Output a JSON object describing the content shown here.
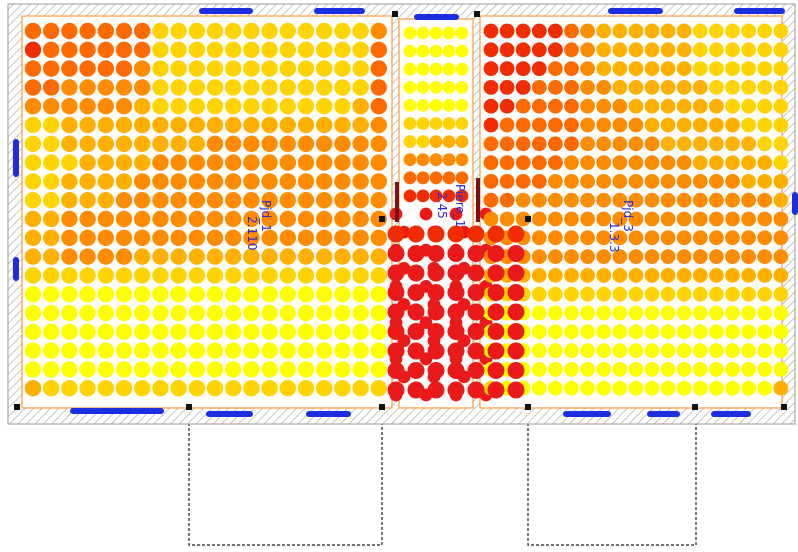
{
  "plan": {
    "colors": {
      "heat_scale": [
        "#ffff00",
        "#ffd400",
        "#ffb000",
        "#ff8c00",
        "#ff6a00",
        "#f02c00",
        "#ea1a1a"
      ],
      "wall_hatch": "#b8b8b8",
      "room_outline": "#ff9a3c",
      "window": "#1c2ee0",
      "door_frame": "#7a1414",
      "label": "#2b2bd6",
      "node": "#111111",
      "dashed_outline": "#222222"
    },
    "rooms": [
      {
        "id": "left-room",
        "label_lines": [
          "Pjd_1",
          "2.110"
        ],
        "heat_grid": [
          [
            4,
            4,
            4,
            4,
            4,
            4,
            4,
            1,
            1,
            1,
            1,
            1,
            1,
            1,
            1,
            1,
            1,
            1,
            1,
            3
          ],
          [
            5,
            4,
            4,
            4,
            4,
            4,
            4,
            1,
            1,
            1,
            1,
            1,
            1,
            1,
            1,
            1,
            1,
            1,
            1,
            4
          ],
          [
            4,
            4,
            4,
            4,
            4,
            4,
            3,
            1,
            1,
            1,
            1,
            1,
            1,
            1,
            1,
            1,
            1,
            1,
            1,
            4
          ],
          [
            4,
            4,
            3,
            3,
            3,
            3,
            3,
            1,
            1,
            1,
            1,
            1,
            1,
            1,
            1,
            1,
            1,
            1,
            1,
            4
          ],
          [
            3,
            3,
            3,
            3,
            3,
            3,
            2,
            1,
            1,
            1,
            1,
            1,
            1,
            1,
            1,
            1,
            1,
            1,
            2,
            4
          ],
          [
            1,
            1,
            2,
            2,
            2,
            2,
            2,
            2,
            2,
            2,
            2,
            2,
            2,
            2,
            2,
            2,
            2,
            2,
            2,
            3
          ],
          [
            1,
            1,
            2,
            2,
            2,
            2,
            2,
            2,
            2,
            2,
            3,
            3,
            3,
            3,
            3,
            3,
            3,
            3,
            3,
            3
          ],
          [
            1,
            1,
            1,
            2,
            2,
            2,
            2,
            3,
            3,
            3,
            3,
            3,
            3,
            3,
            3,
            3,
            3,
            3,
            3,
            3
          ],
          [
            1,
            1,
            2,
            2,
            2,
            2,
            3,
            3,
            3,
            3,
            3,
            3,
            3,
            3,
            3,
            3,
            3,
            3,
            3,
            3
          ],
          [
            1,
            1,
            2,
            2,
            2,
            3,
            3,
            3,
            3,
            3,
            3,
            3,
            3,
            3,
            3,
            3,
            3,
            3,
            3,
            3
          ],
          [
            2,
            2,
            3,
            3,
            3,
            3,
            3,
            3,
            3,
            3,
            3,
            3,
            3,
            3,
            3,
            3,
            3,
            3,
            3,
            3
          ],
          [
            2,
            2,
            3,
            3,
            3,
            3,
            3,
            3,
            3,
            3,
            3,
            3,
            3,
            3,
            3,
            3,
            3,
            3,
            3,
            3
          ],
          [
            2,
            2,
            3,
            3,
            3,
            3,
            2,
            2,
            2,
            2,
            2,
            2,
            2,
            2,
            2,
            2,
            2,
            2,
            2,
            2
          ],
          [
            1,
            1,
            1,
            1,
            1,
            1,
            1,
            1,
            1,
            1,
            1,
            1,
            1,
            1,
            1,
            1,
            1,
            1,
            1,
            1
          ],
          [
            0,
            0,
            0,
            0,
            0,
            0,
            0,
            0,
            0,
            0,
            0,
            0,
            0,
            0,
            0,
            0,
            0,
            0,
            0,
            0
          ],
          [
            0,
            0,
            0,
            0,
            0,
            0,
            0,
            0,
            0,
            0,
            0,
            0,
            0,
            0,
            0,
            0,
            0,
            0,
            0,
            0
          ],
          [
            0,
            0,
            0,
            0,
            0,
            0,
            0,
            0,
            0,
            0,
            0,
            0,
            0,
            0,
            0,
            0,
            0,
            0,
            0,
            0
          ],
          [
            0,
            0,
            0,
            0,
            0,
            0,
            0,
            0,
            0,
            0,
            0,
            0,
            0,
            0,
            0,
            0,
            0,
            0,
            0,
            0
          ],
          [
            0,
            0,
            0,
            0,
            0,
            0,
            0,
            0,
            0,
            0,
            0,
            0,
            0,
            0,
            0,
            0,
            0,
            0,
            0,
            0
          ],
          [
            2,
            1,
            1,
            1,
            1,
            1,
            1,
            1,
            1,
            1,
            1,
            1,
            1,
            1,
            1,
            1,
            1,
            1,
            1,
            1
          ],
          [
            2,
            2,
            1,
            1,
            1,
            1,
            1,
            1,
            1,
            1,
            1,
            1,
            1,
            1,
            1,
            1,
            1,
            1,
            1,
            2
          ]
        ]
      },
      {
        "id": "middle-room",
        "label_lines": [
          "Piere_1",
          "2.45"
        ],
        "heat_grid": [
          [
            0,
            0,
            0,
            0,
            0
          ],
          [
            0,
            0,
            0,
            0,
            0
          ],
          [
            0,
            0,
            0,
            0,
            0
          ],
          [
            0,
            0,
            0,
            0,
            0
          ],
          [
            0,
            0,
            0,
            0,
            0
          ],
          [
            1,
            1,
            1,
            1,
            1
          ],
          [
            1,
            1,
            2,
            2,
            2
          ],
          [
            3,
            3,
            3,
            3,
            3
          ],
          [
            4,
            4,
            4,
            4,
            4
          ],
          [
            5,
            5,
            5,
            5,
            5
          ],
          [
            6,
            6,
            6,
            6,
            6
          ],
          [
            6,
            6,
            6,
            6,
            6
          ],
          [
            6,
            6,
            6,
            6,
            6
          ],
          [
            6,
            6,
            6,
            6,
            6
          ],
          [
            6,
            6,
            6,
            6,
            6
          ],
          [
            6,
            6,
            6,
            6,
            6
          ],
          [
            6,
            6,
            6,
            6,
            6
          ],
          [
            6,
            6,
            6,
            6,
            6
          ],
          [
            6,
            6,
            6,
            6,
            6
          ],
          [
            6,
            6,
            6,
            6,
            6
          ],
          [
            6,
            6,
            6,
            6,
            6
          ]
        ]
      },
      {
        "id": "right-room",
        "label_lines": [
          "Pjd_3",
          "1.3.3"
        ],
        "heat_grid": [
          [
            5,
            5,
            5,
            5,
            5,
            4,
            3,
            2,
            2,
            2,
            2,
            2,
            2,
            1,
            1,
            1,
            1,
            1,
            1
          ],
          [
            5,
            5,
            5,
            5,
            5,
            4,
            3,
            2,
            2,
            2,
            2,
            2,
            2,
            1,
            1,
            1,
            1,
            1,
            1
          ],
          [
            5,
            5,
            5,
            5,
            4,
            4,
            3,
            2,
            2,
            2,
            2,
            2,
            2,
            1,
            1,
            1,
            1,
            1,
            1
          ],
          [
            5,
            5,
            5,
            4,
            4,
            4,
            3,
            3,
            2,
            2,
            2,
            2,
            2,
            2,
            1,
            1,
            1,
            1,
            1
          ],
          [
            5,
            5,
            4,
            4,
            4,
            4,
            3,
            3,
            3,
            2,
            2,
            2,
            2,
            2,
            2,
            1,
            1,
            1,
            1
          ],
          [
            5,
            4,
            4,
            4,
            4,
            4,
            3,
            3,
            3,
            3,
            2,
            2,
            2,
            2,
            2,
            2,
            1,
            1,
            1
          ],
          [
            4,
            4,
            4,
            4,
            4,
            4,
            3,
            3,
            3,
            3,
            3,
            2,
            2,
            2,
            2,
            2,
            2,
            1,
            1
          ],
          [
            4,
            4,
            4,
            4,
            4,
            3,
            3,
            3,
            3,
            3,
            3,
            3,
            3,
            2,
            2,
            2,
            2,
            2,
            1
          ],
          [
            4,
            4,
            4,
            4,
            3,
            3,
            3,
            3,
            3,
            3,
            3,
            3,
            3,
            3,
            3,
            3,
            2,
            2,
            2
          ],
          [
            4,
            4,
            3,
            3,
            3,
            3,
            3,
            3,
            3,
            3,
            3,
            3,
            3,
            3,
            3,
            3,
            3,
            3,
            2
          ],
          [
            3,
            3,
            3,
            3,
            3,
            3,
            3,
            3,
            3,
            3,
            3,
            3,
            3,
            3,
            3,
            3,
            3,
            3,
            3
          ],
          [
            3,
            3,
            3,
            3,
            3,
            3,
            3,
            3,
            3,
            3,
            3,
            3,
            3,
            3,
            3,
            3,
            3,
            3,
            3
          ],
          [
            3,
            3,
            3,
            3,
            3,
            3,
            3,
            3,
            3,
            3,
            3,
            3,
            3,
            3,
            3,
            3,
            3,
            3,
            3
          ],
          [
            2,
            2,
            2,
            2,
            2,
            2,
            2,
            2,
            2,
            2,
            2,
            2,
            2,
            2,
            2,
            2,
            2,
            2,
            2
          ],
          [
            1,
            1,
            1,
            1,
            1,
            1,
            1,
            1,
            1,
            1,
            1,
            1,
            1,
            1,
            1,
            1,
            1,
            1,
            1
          ],
          [
            0,
            0,
            0,
            0,
            0,
            0,
            0,
            0,
            0,
            0,
            0,
            0,
            0,
            0,
            0,
            0,
            0,
            0,
            0
          ],
          [
            0,
            0,
            0,
            0,
            0,
            0,
            0,
            0,
            0,
            0,
            0,
            0,
            0,
            0,
            0,
            0,
            0,
            0,
            0
          ],
          [
            0,
            0,
            0,
            0,
            0,
            0,
            0,
            0,
            0,
            0,
            0,
            0,
            0,
            0,
            0,
            0,
            0,
            0,
            0
          ],
          [
            0,
            0,
            0,
            0,
            0,
            0,
            0,
            0,
            0,
            0,
            0,
            0,
            0,
            0,
            0,
            0,
            0,
            0,
            0
          ],
          [
            1,
            0,
            0,
            0,
            0,
            0,
            0,
            0,
            0,
            0,
            0,
            0,
            0,
            0,
            0,
            0,
            0,
            0,
            2
          ],
          [
            2,
            1,
            1,
            1,
            1,
            1,
            1,
            1,
            1,
            1,
            1,
            1,
            1,
            1,
            1,
            1,
            1,
            1,
            2
          ]
        ]
      }
    ]
  }
}
